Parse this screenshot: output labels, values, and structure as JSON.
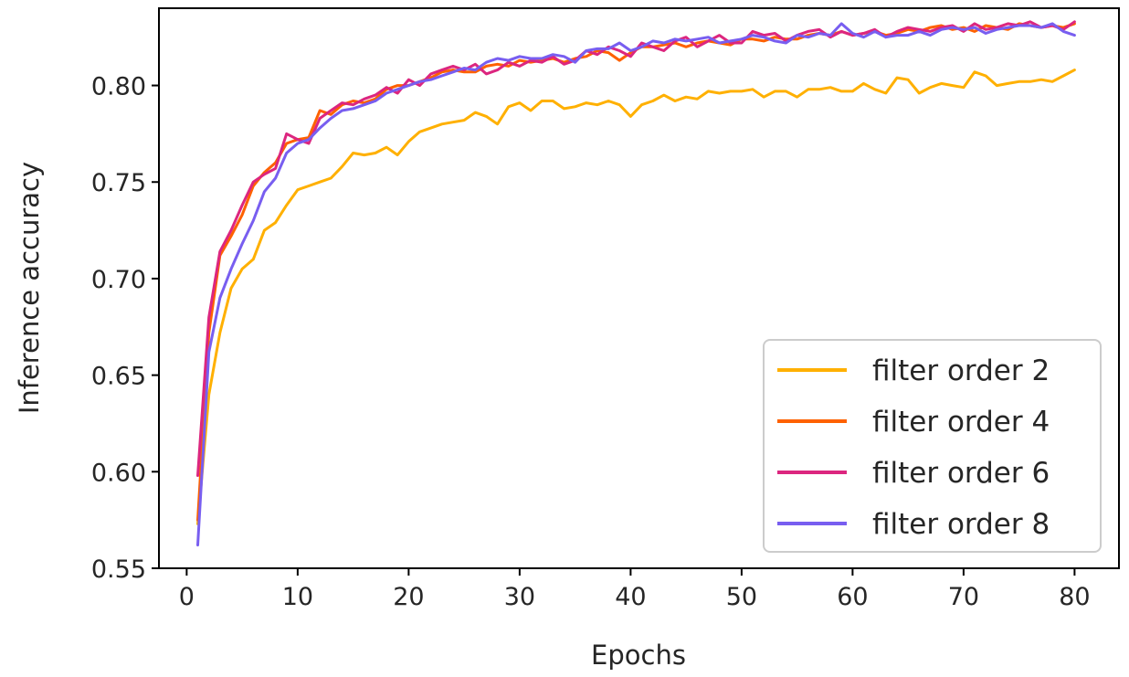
{
  "chart_data": {
    "type": "line",
    "title": "",
    "xlabel": "Epochs",
    "ylabel": "Inference accuracy",
    "xlim": [
      -2.5,
      84
    ],
    "ylim": [
      0.55,
      0.84
    ],
    "xticks": [
      0,
      10,
      20,
      30,
      40,
      50,
      60,
      70,
      80
    ],
    "yticks": [
      0.55,
      0.6,
      0.65,
      0.7,
      0.75,
      0.8
    ],
    "xtick_labels": [
      "0",
      "10",
      "20",
      "30",
      "40",
      "50",
      "60",
      "70",
      "80"
    ],
    "ytick_labels": [
      "0.55",
      "0.60",
      "0.65",
      "0.70",
      "0.75",
      "0.80"
    ],
    "grid": false,
    "legend_position": "lower-right",
    "x": [
      1,
      2,
      3,
      4,
      5,
      6,
      7,
      8,
      9,
      10,
      11,
      12,
      13,
      14,
      15,
      16,
      17,
      18,
      19,
      20,
      21,
      22,
      23,
      24,
      25,
      26,
      27,
      28,
      29,
      30,
      31,
      32,
      33,
      34,
      35,
      36,
      37,
      38,
      39,
      40,
      41,
      42,
      43,
      44,
      45,
      46,
      47,
      48,
      49,
      50,
      51,
      52,
      53,
      54,
      55,
      56,
      57,
      58,
      59,
      60,
      61,
      62,
      63,
      64,
      65,
      66,
      67,
      68,
      69,
      70,
      71,
      72,
      73,
      74,
      75,
      76,
      77,
      78,
      79,
      80
    ],
    "series": [
      {
        "name": "filter order 2",
        "color": "#ffb000",
        "values": [
          0.573,
          0.64,
          0.672,
          0.695,
          0.705,
          0.71,
          0.725,
          0.729,
          0.738,
          0.746,
          0.748,
          0.75,
          0.752,
          0.758,
          0.765,
          0.764,
          0.765,
          0.768,
          0.764,
          0.771,
          0.776,
          0.778,
          0.78,
          0.781,
          0.782,
          0.786,
          0.784,
          0.78,
          0.789,
          0.791,
          0.787,
          0.792,
          0.792,
          0.788,
          0.789,
          0.791,
          0.79,
          0.792,
          0.79,
          0.784,
          0.79,
          0.792,
          0.795,
          0.792,
          0.794,
          0.793,
          0.797,
          0.796,
          0.797,
          0.797,
          0.798,
          0.794,
          0.797,
          0.797,
          0.794,
          0.798,
          0.798,
          0.799,
          0.797,
          0.797,
          0.801,
          0.798,
          0.796,
          0.804,
          0.803,
          0.796,
          0.799,
          0.801,
          0.8,
          0.799,
          0.807,
          0.805,
          0.8,
          0.801,
          0.802,
          0.802,
          0.803,
          0.802,
          0.805,
          0.808
        ]
      },
      {
        "name": "filter order 4",
        "color": "#fe6100",
        "values": [
          0.575,
          0.672,
          0.712,
          0.722,
          0.733,
          0.748,
          0.755,
          0.76,
          0.77,
          0.772,
          0.773,
          0.787,
          0.785,
          0.79,
          0.792,
          0.791,
          0.793,
          0.798,
          0.8,
          0.8,
          0.802,
          0.804,
          0.807,
          0.808,
          0.807,
          0.807,
          0.81,
          0.811,
          0.81,
          0.813,
          0.812,
          0.813,
          0.814,
          0.812,
          0.814,
          0.815,
          0.818,
          0.817,
          0.813,
          0.817,
          0.82,
          0.82,
          0.821,
          0.822,
          0.82,
          0.822,
          0.823,
          0.822,
          0.821,
          0.824,
          0.824,
          0.823,
          0.825,
          0.824,
          0.824,
          0.826,
          0.827,
          0.826,
          0.828,
          0.826,
          0.827,
          0.828,
          0.826,
          0.827,
          0.829,
          0.828,
          0.83,
          0.831,
          0.829,
          0.83,
          0.828,
          0.831,
          0.83,
          0.829,
          0.832,
          0.831,
          0.83,
          0.831,
          0.83,
          0.832
        ]
      },
      {
        "name": "filter order 6",
        "color": "#dc267f",
        "values": [
          0.598,
          0.68,
          0.714,
          0.725,
          0.738,
          0.75,
          0.754,
          0.757,
          0.775,
          0.772,
          0.77,
          0.783,
          0.787,
          0.791,
          0.79,
          0.793,
          0.795,
          0.799,
          0.796,
          0.803,
          0.8,
          0.806,
          0.808,
          0.81,
          0.808,
          0.811,
          0.806,
          0.808,
          0.812,
          0.81,
          0.813,
          0.812,
          0.815,
          0.811,
          0.813,
          0.818,
          0.816,
          0.82,
          0.818,
          0.815,
          0.822,
          0.82,
          0.818,
          0.823,
          0.825,
          0.82,
          0.823,
          0.826,
          0.822,
          0.822,
          0.828,
          0.826,
          0.827,
          0.823,
          0.826,
          0.828,
          0.829,
          0.825,
          0.828,
          0.826,
          0.827,
          0.829,
          0.825,
          0.828,
          0.83,
          0.829,
          0.828,
          0.83,
          0.831,
          0.828,
          0.832,
          0.829,
          0.83,
          0.832,
          0.831,
          0.833,
          0.83,
          0.831,
          0.829,
          0.833
        ]
      },
      {
        "name": "filter order 8",
        "color": "#785ef0",
        "values": [
          0.562,
          0.662,
          0.69,
          0.705,
          0.718,
          0.73,
          0.745,
          0.752,
          0.765,
          0.77,
          0.772,
          0.778,
          0.783,
          0.787,
          0.788,
          0.79,
          0.792,
          0.796,
          0.798,
          0.8,
          0.802,
          0.803,
          0.805,
          0.807,
          0.809,
          0.808,
          0.812,
          0.814,
          0.813,
          0.815,
          0.814,
          0.814,
          0.816,
          0.815,
          0.812,
          0.818,
          0.819,
          0.819,
          0.822,
          0.818,
          0.82,
          0.823,
          0.822,
          0.824,
          0.823,
          0.824,
          0.825,
          0.822,
          0.823,
          0.824,
          0.826,
          0.825,
          0.823,
          0.822,
          0.826,
          0.825,
          0.827,
          0.826,
          0.832,
          0.827,
          0.825,
          0.828,
          0.825,
          0.826,
          0.826,
          0.828,
          0.826,
          0.829,
          0.83,
          0.829,
          0.83,
          0.827,
          0.829,
          0.83,
          0.831,
          0.831,
          0.83,
          0.832,
          0.828,
          0.826
        ]
      }
    ]
  }
}
